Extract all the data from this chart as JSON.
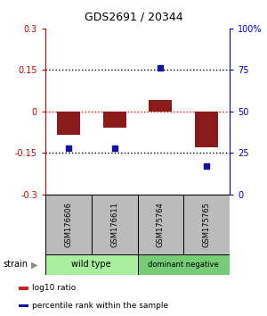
{
  "title": "GDS2691 / 20344",
  "samples": [
    "GSM176606",
    "GSM176611",
    "GSM175764",
    "GSM175765"
  ],
  "log10_ratio": [
    -0.085,
    -0.06,
    0.04,
    -0.13
  ],
  "percentile_rank": [
    28,
    28,
    76,
    17
  ],
  "ylim_left": [
    -0.3,
    0.3
  ],
  "ylim_right": [
    0,
    100
  ],
  "yticks_left": [
    -0.3,
    -0.15,
    0,
    0.15,
    0.3
  ],
  "yticks_right": [
    0,
    25,
    50,
    75,
    100
  ],
  "bar_color": "#8B1A1A",
  "dot_color": "#1111AA",
  "groups": [
    {
      "label": "wild type",
      "color": "#AAEEA0",
      "samples": [
        0,
        1
      ]
    },
    {
      "label": "dominant negative",
      "color": "#77CC77",
      "samples": [
        2,
        3
      ]
    }
  ],
  "strain_label": "strain",
  "legend_items": [
    {
      "color": "#CC2222",
      "label": "log10 ratio"
    },
    {
      "color": "#1111AA",
      "label": "percentile rank within the sample"
    }
  ],
  "left_axis_color": "#CC0000",
  "right_axis_color": "#0000CC",
  "sample_box_color": "#BBBBBB",
  "bar_width": 0.5,
  "dot_size": 5
}
